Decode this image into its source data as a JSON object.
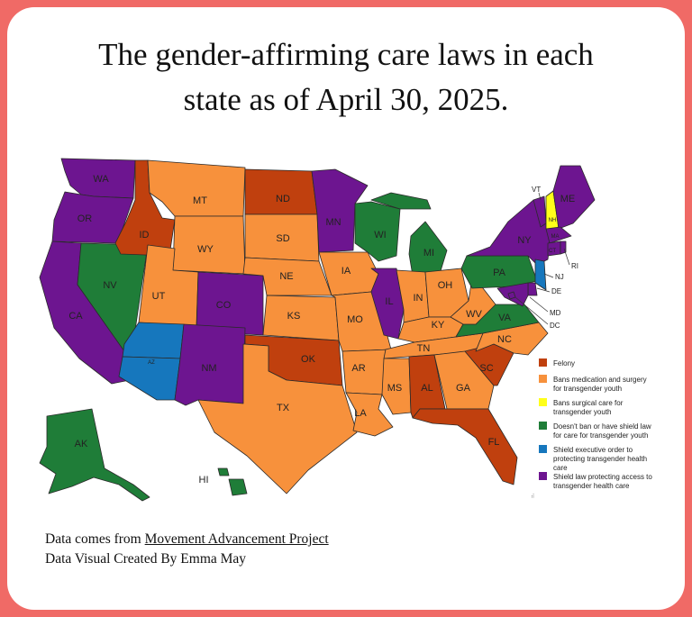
{
  "title_lines": [
    "The gender-affirming care laws in each",
    "state as of April 30, 2025."
  ],
  "colors": {
    "felony": "#c0400e",
    "bans_med_surgery": "#f7913c",
    "bans_surgical": "#ffff1a",
    "shield_no_ban": "#1f7d38",
    "shield_exec_order": "#1677bd",
    "shield_law": "#6d1590",
    "frame": "#f06a66"
  },
  "legend": [
    {
      "key": "felony",
      "lines": [
        "Felony"
      ]
    },
    {
      "key": "bans_med_surgery",
      "lines": [
        "Bans medication and surgery",
        "for transgender youth"
      ]
    },
    {
      "key": "bans_surgical",
      "lines": [
        "Bans surgical care for",
        "transgender youth"
      ]
    },
    {
      "key": "shield_no_ban",
      "lines": [
        "Doesn't ban or have shield law",
        "for care for transgender youth"
      ]
    },
    {
      "key": "shield_exec_order",
      "lines": [
        "Shield executive order to",
        "protecting transgender health",
        "care"
      ]
    },
    {
      "key": "shield_law",
      "lines": [
        "Shield law protecting access to",
        "transgender health care"
      ]
    }
  ],
  "states": {
    "WA": "shield_law",
    "OR": "shield_law",
    "CA": "shield_law",
    "NV": "shield_no_ban",
    "ID": "felony",
    "MT": "bans_med_surgery",
    "WY": "bans_med_surgery",
    "UT": "bans_med_surgery",
    "CO": "shield_law",
    "AZ": "shield_exec_order",
    "NM": "shield_law",
    "ND": "felony",
    "SD": "bans_med_surgery",
    "NE": "bans_med_surgery",
    "KS": "bans_med_surgery",
    "OK": "felony",
    "TX": "bans_med_surgery",
    "MN": "shield_law",
    "IA": "bans_med_surgery",
    "MO": "bans_med_surgery",
    "AR": "bans_med_surgery",
    "LA": "bans_med_surgery",
    "WI": "shield_no_ban",
    "IL": "shield_law",
    "MI": "shield_no_ban",
    "IN": "bans_med_surgery",
    "OH": "bans_med_surgery",
    "KY": "bans_med_surgery",
    "TN": "bans_med_surgery",
    "MS": "bans_med_surgery",
    "AL": "felony",
    "GA": "bans_med_surgery",
    "FL": "felony",
    "SC": "felony",
    "NC": "bans_med_surgery",
    "VA": "shield_no_ban",
    "WV": "bans_med_surgery",
    "PA": "shield_no_ban",
    "NY": "shield_law",
    "VT": "shield_law",
    "NH": "bans_surgical",
    "ME": "shield_law",
    "MA": "shield_law",
    "CT": "shield_law",
    "RI": "shield_law",
    "NJ": "shield_exec_order",
    "DE": "shield_law",
    "MD": "shield_law",
    "DC": "shield_law",
    "AK": "shield_no_ban",
    "HI": "shield_no_ban"
  },
  "state_labels": {
    "WA": "WA",
    "OR": "OR",
    "CA": "CA",
    "NV": "NV",
    "ID": "ID",
    "MT": "MT",
    "WY": "WY",
    "UT": "UT",
    "CO": "CO",
    "AZ": "AZ",
    "NM": "NM",
    "ND": "ND",
    "SD": "SD",
    "NE": "NE",
    "KS": "KS",
    "OK": "OK",
    "TX": "TX",
    "MN": "MN",
    "IA": "IA",
    "MO": "MO",
    "AR": "AR",
    "LA": "LA",
    "WI": "WI",
    "IL": "IL",
    "MI": "MI",
    "IN": "IN",
    "OH": "OH",
    "KY": "KY",
    "TN": "TN",
    "MS": "MS",
    "AL": "AL",
    "GA": "GA",
    "FL": "FL",
    "SC": "SC",
    "NC": "NC",
    "VA": "VA",
    "WV": "WV",
    "PA": "PA",
    "NY": "NY",
    "VT": "VT",
    "NH": "NH",
    "ME": "ME",
    "MA": "MA",
    "CT": "CT",
    "RI": "RI",
    "NJ": "NJ",
    "DE": "DE",
    "MD": "MD",
    "DC": "DC",
    "AK": "AK",
    "HI": "HI"
  },
  "source": {
    "prefix": "Data comes from ",
    "link_text": "Movement Advancement Project",
    "credit": "Data Visual Created By Emma May"
  }
}
